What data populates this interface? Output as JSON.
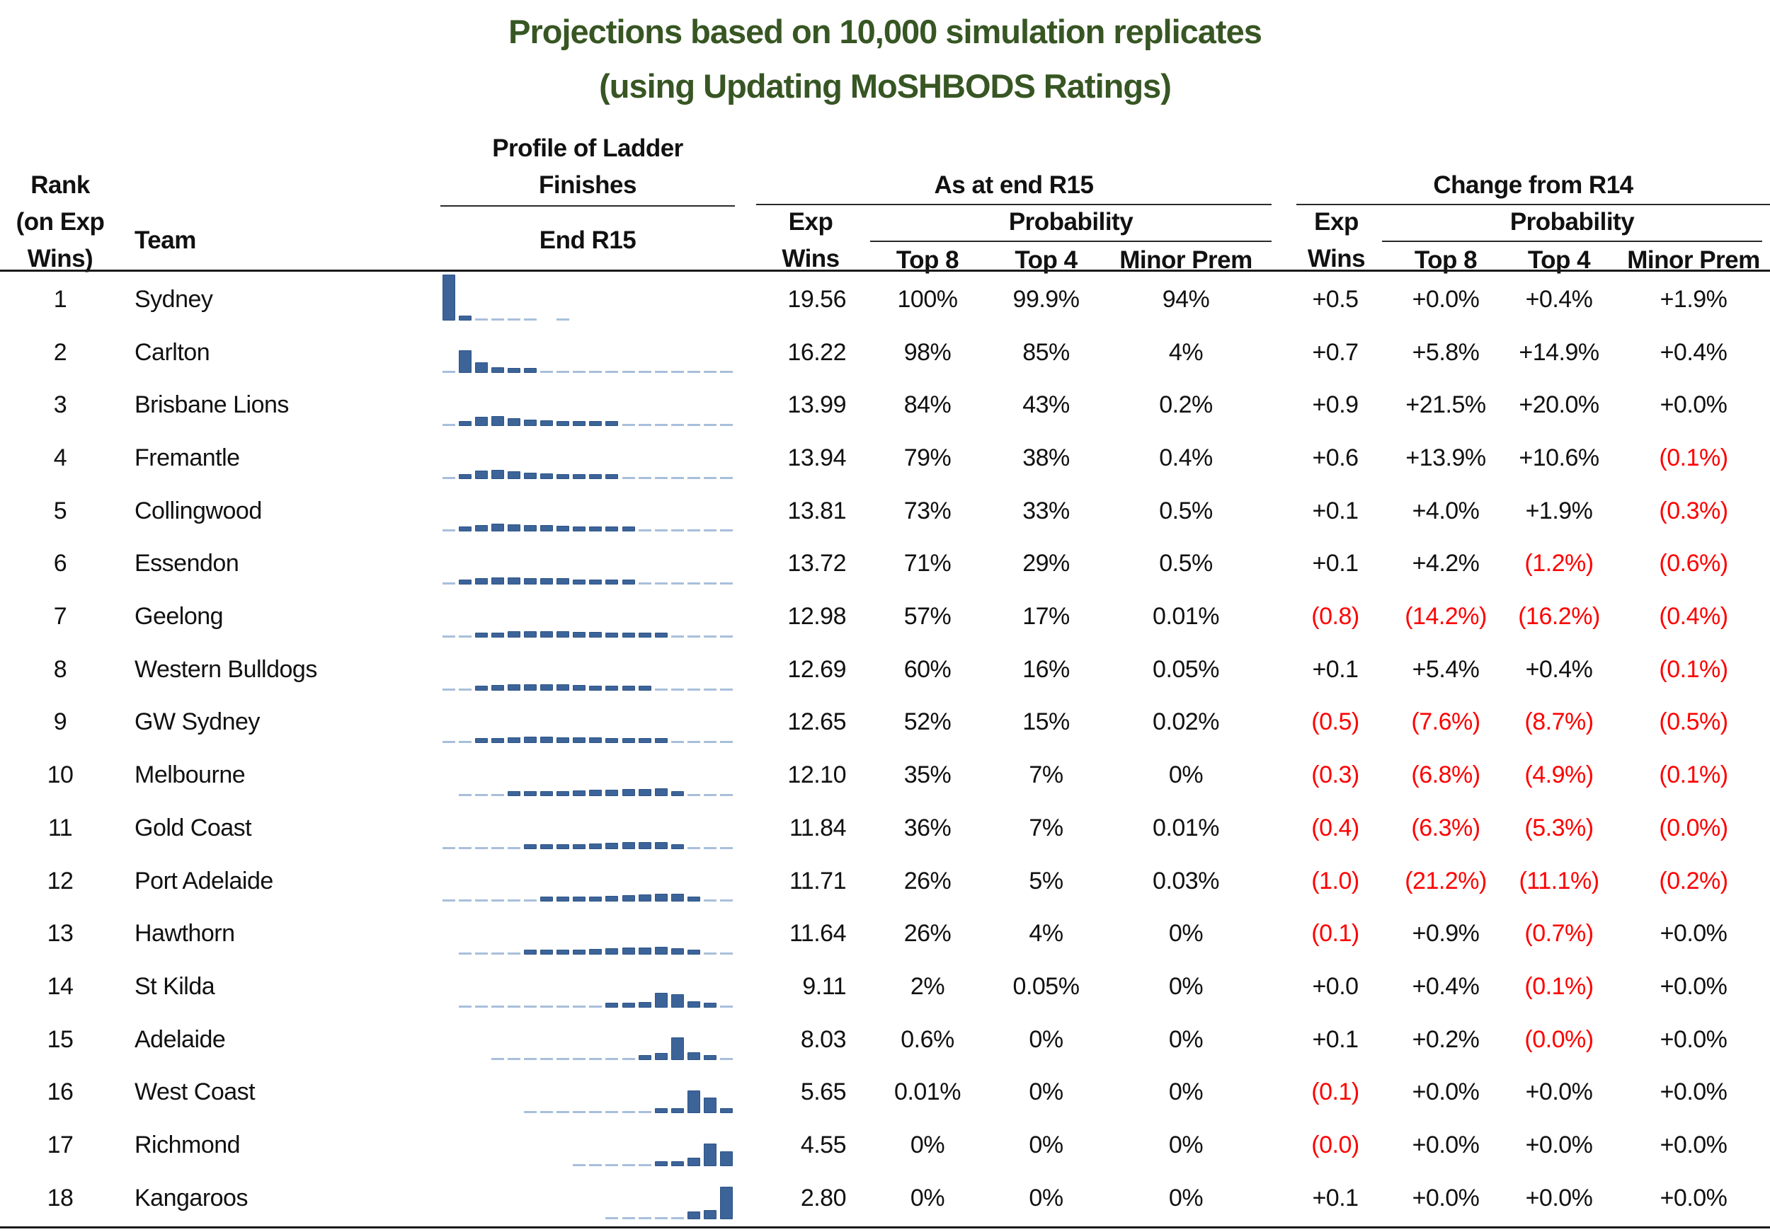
{
  "title": {
    "line1": "Projections based on 10,000 simulation replicates",
    "line2": "(using Updating MoSHBODS Ratings)"
  },
  "colors": {
    "title_green": "#375623",
    "negative_red": "#fe0000",
    "bar_blue": "#3c6498",
    "dash_light_blue": "#a8bfdb"
  },
  "header": {
    "rank_line1": "Rank",
    "rank_line2": "(on Exp",
    "rank_line3": "Wins)",
    "team": "Team",
    "profile_line1": "Profile of Ladder",
    "profile_line2": "Finishes",
    "profile_sub": "End R15",
    "asat_group": "As at end R15",
    "change_group": "Change from R14",
    "exp_line1": "Exp",
    "exp_line2": "Wins",
    "probability": "Probability",
    "top8": "Top 8",
    "top4": "Top 4",
    "minor_prem": "Minor Prem"
  },
  "chart_data": {
    "type": "table",
    "title": "Projections based on 10,000 simulation replicates (using Updating MoSHBODS Ratings)",
    "sparkline_type": "bar",
    "sparkline_x": "ladder position 1-18 at end of R15",
    "sparkline_note": "values are estimated % of simulation replicates finishing in each ladder position; light dashes = near-zero",
    "rows": [
      {
        "rank": "1",
        "team": "Sydney",
        "profile": [
          94,
          4,
          1.2,
          0.8,
          0.6,
          0.4,
          0,
          0.3,
          0,
          0,
          0,
          0,
          0,
          0,
          0,
          0,
          0,
          0
        ],
        "asat": {
          "exp": "19.56",
          "top8": "100%",
          "top4": "99.9%",
          "mp": "94%"
        },
        "chg": {
          "exp": "+0.5",
          "top8": "+0.0%",
          "top4": "+0.4%",
          "mp": "+1.9%"
        }
      },
      {
        "rank": "2",
        "team": "Carlton",
        "profile": [
          2.5,
          45,
          20,
          9,
          6,
          4,
          1.5,
          1,
          0.8,
          0.6,
          0.5,
          0.4,
          0.3,
          0.3,
          0.2,
          0.2,
          0.2,
          0.2
        ],
        "asat": {
          "exp": "16.22",
          "top8": "98%",
          "top4": "85%",
          "mp": "4%"
        },
        "chg": {
          "exp": "+0.7",
          "top8": "+5.8%",
          "top4": "+14.9%",
          "mp": "+0.4%"
        }
      },
      {
        "rank": "3",
        "team": "Brisbane Lions",
        "profile": [
          0.2,
          8,
          17,
          18,
          14,
          11,
          9,
          7,
          5,
          4,
          3,
          2,
          1.2,
          0.8,
          0.4,
          0.3,
          0.2,
          0.2
        ],
        "asat": {
          "exp": "13.99",
          "top8": "84%",
          "top4": "43%",
          "mp": "0.2%"
        },
        "chg": {
          "exp": "+0.9",
          "top8": "+21.5%",
          "top4": "+20.0%",
          "mp": "+0.0%"
        }
      },
      {
        "rank": "4",
        "team": "Fremantle",
        "profile": [
          0.4,
          7,
          15,
          17,
          14,
          11,
          9,
          7,
          5.5,
          4.5,
          3.5,
          2.5,
          1.5,
          1,
          0.6,
          0.3,
          0.2,
          0.2
        ],
        "asat": {
          "exp": "13.94",
          "top8": "79%",
          "top4": "38%",
          "mp": "0.4%"
        },
        "chg": {
          "exp": "+0.6",
          "top8": "+13.9%",
          "top4": "+10.6%",
          "mp": "(0.1%)"
        }
      },
      {
        "rank": "5",
        "team": "Collingwood",
        "profile": [
          0.5,
          5,
          11,
          13,
          12,
          11,
          10,
          9.5,
          7.5,
          6,
          5,
          3.5,
          2.5,
          1.5,
          1,
          0.7,
          0.3,
          0.2
        ],
        "asat": {
          "exp": "13.81",
          "top8": "73%",
          "top4": "33%",
          "mp": "0.5%"
        },
        "chg": {
          "exp": "+0.1",
          "top8": "+4.0%",
          "top4": "+1.9%",
          "mp": "(0.3%)"
        }
      },
      {
        "rank": "6",
        "team": "Essendon",
        "profile": [
          0.5,
          4.5,
          10,
          12,
          12,
          11,
          10.5,
          10,
          8,
          6.5,
          5.5,
          4,
          2.5,
          1.5,
          0.8,
          0.4,
          0.3,
          0.2
        ],
        "asat": {
          "exp": "13.72",
          "top8": "71%",
          "top4": "29%",
          "mp": "0.5%"
        },
        "chg": {
          "exp": "+0.1",
          "top8": "+4.2%",
          "top4": "(1.2%)",
          "mp": "(0.6%)"
        }
      },
      {
        "rank": "7",
        "team": "Geelong",
        "profile": [
          0.2,
          1.5,
          5,
          8,
          10,
          11,
          11,
          10.5,
          9.5,
          8.5,
          7.5,
          6,
          4.5,
          3,
          2,
          1.2,
          0.6,
          0.3
        ],
        "asat": {
          "exp": "12.98",
          "top8": "57%",
          "top4": "17%",
          "mp": "0.01%"
        },
        "chg": {
          "exp": "(0.8)",
          "top8": "(14.2%)",
          "top4": "(16.2%)",
          "mp": "(0.4%)"
        }
      },
      {
        "rank": "8",
        "team": "Western Bulldogs",
        "profile": [
          0.2,
          2,
          6,
          9,
          10.5,
          11,
          11,
          10.5,
          9,
          8,
          7,
          5.5,
          4,
          2.8,
          1.8,
          1,
          0.5,
          0.3
        ],
        "asat": {
          "exp": "12.69",
          "top8": "60%",
          "top4": "16%",
          "mp": "0.05%"
        },
        "chg": {
          "exp": "+0.1",
          "top8": "+5.4%",
          "top4": "+0.4%",
          "mp": "(0.1%)"
        }
      },
      {
        "rank": "9",
        "team": "GW Sydney",
        "profile": [
          0.2,
          1.5,
          5,
          7.5,
          9,
          10,
          10,
          9.5,
          9.5,
          9,
          8,
          7,
          5.5,
          4,
          2.5,
          1.2,
          0.5,
          0.3
        ],
        "asat": {
          "exp": "12.65",
          "top8": "52%",
          "top4": "15%",
          "mp": "0.02%"
        },
        "chg": {
          "exp": "(0.5)",
          "top8": "(7.6%)",
          "top4": "(8.7%)",
          "mp": "(0.5%)"
        }
      },
      {
        "rank": "10",
        "team": "Melbourne",
        "profile": [
          0,
          0.4,
          1,
          2,
          3,
          4.5,
          6,
          7.5,
          9,
          10,
          11,
          12,
          12.5,
          13,
          6,
          1.5,
          0.4,
          0.2
        ],
        "asat": {
          "exp": "12.10",
          "top8": "35%",
          "top4": "7%",
          "mp": "0%"
        },
        "chg": {
          "exp": "(0.3)",
          "top8": "(6.8%)",
          "top4": "(4.9%)",
          "mp": "(0.1%)"
        }
      },
      {
        "rank": "11",
        "team": "Gold Coast",
        "profile": [
          0.2,
          0.3,
          0.8,
          1.5,
          2.5,
          3.5,
          5,
          6.5,
          8,
          9.5,
          11,
          12,
          12.5,
          12,
          5.5,
          1.5,
          0.4,
          0.2
        ],
        "asat": {
          "exp": "11.84",
          "top8": "36%",
          "top4": "7%",
          "mp": "0.01%"
        },
        "chg": {
          "exp": "(0.4)",
          "top8": "(6.3%)",
          "top4": "(5.3%)",
          "mp": "(0.0%)"
        }
      },
      {
        "rank": "12",
        "team": "Port Adelaide",
        "profile": [
          0.2,
          0.3,
          0.5,
          0.8,
          1.2,
          2,
          3,
          4,
          5.5,
          7,
          8.5,
          10,
          11.5,
          13,
          13.5,
          5,
          1,
          0.3
        ],
        "asat": {
          "exp": "11.71",
          "top8": "26%",
          "top4": "5%",
          "mp": "0.03%"
        },
        "chg": {
          "exp": "(1.0)",
          "top8": "(21.2%)",
          "top4": "(11.1%)",
          "mp": "(0.2%)"
        }
      },
      {
        "rank": "13",
        "team": "Hawthorn",
        "profile": [
          0,
          0.3,
          0.5,
          1,
          2,
          3,
          4,
          5.5,
          7,
          8.5,
          10,
          11.5,
          12.5,
          13,
          10.5,
          4.5,
          1,
          0.4
        ],
        "asat": {
          "exp": "11.64",
          "top8": "26%",
          "top4": "4%",
          "mp": "0%"
        },
        "chg": {
          "exp": "(0.1)",
          "top8": "+0.9%",
          "top4": "(0.7%)",
          "mp": "+0.0%"
        }
      },
      {
        "rank": "14",
        "team": "St Kilda",
        "profile": [
          0,
          0.2,
          0.2,
          0.2,
          0.3,
          0.3,
          0.4,
          0.7,
          1.5,
          2.5,
          3.5,
          5,
          9,
          28,
          25,
          10,
          3,
          1
        ],
        "asat": {
          "exp": "9.11",
          "top8": "2%",
          "top4": "0.05%",
          "mp": "0%"
        },
        "chg": {
          "exp": "+0.0",
          "top8": "+0.4%",
          "top4": "(0.1%)",
          "mp": "+0.0%"
        }
      },
      {
        "rank": "15",
        "team": "Adelaide",
        "profile": [
          0,
          0,
          0,
          0.2,
          0.2,
          0.2,
          0.3,
          0.4,
          0.6,
          1,
          1.5,
          2.5,
          5,
          12,
          45,
          14,
          4,
          1
        ],
        "asat": {
          "exp": "8.03",
          "top8": "0.6%",
          "top4": "0%",
          "mp": "0%"
        },
        "chg": {
          "exp": "+0.1",
          "top8": "+0.2%",
          "top4": "(0.0%)",
          "mp": "+0.0%"
        }
      },
      {
        "rank": "16",
        "team": "West Coast",
        "profile": [
          0,
          0,
          0,
          0,
          0,
          0.2,
          0.2,
          0.3,
          0.4,
          0.6,
          1,
          1.5,
          2.5,
          3.5,
          8,
          45,
          30,
          7
        ],
        "asat": {
          "exp": "5.65",
          "top8": "0.01%",
          "top4": "0%",
          "mp": "0%"
        },
        "chg": {
          "exp": "(0.1)",
          "top8": "+0.0%",
          "top4": "+0.0%",
          "mp": "+0.0%"
        }
      },
      {
        "rank": "17",
        "team": "Richmond",
        "profile": [
          0,
          0,
          0,
          0,
          0,
          0,
          0,
          0,
          0.2,
          0.3,
          0.5,
          0.8,
          1.5,
          3.5,
          6,
          15,
          45,
          28
        ],
        "asat": {
          "exp": "4.55",
          "top8": "0%",
          "top4": "0%",
          "mp": "0%"
        },
        "chg": {
          "exp": "(0.0)",
          "top8": "+0.0%",
          "top4": "+0.0%",
          "mp": "+0.0%"
        }
      },
      {
        "rank": "18",
        "team": "Kangaroos",
        "profile": [
          0,
          0,
          0,
          0,
          0,
          0,
          0,
          0,
          0,
          0,
          0.2,
          0.3,
          0.5,
          0.8,
          1.5,
          13,
          17,
          65
        ],
        "asat": {
          "exp": "2.80",
          "top8": "0%",
          "top4": "0%",
          "mp": "0%"
        },
        "chg": {
          "exp": "+0.1",
          "top8": "+0.0%",
          "top4": "+0.0%",
          "mp": "+0.0%"
        }
      }
    ]
  }
}
